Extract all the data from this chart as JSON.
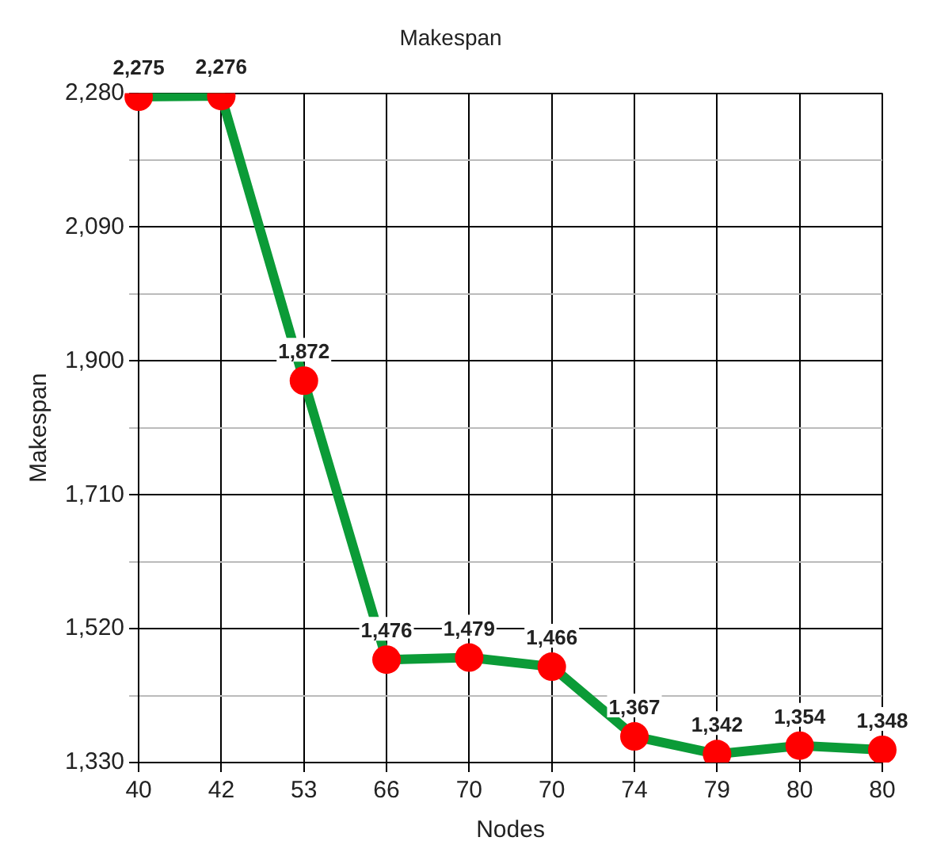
{
  "chart_data": {
    "type": "line",
    "title": "Makespan",
    "xlabel": "Nodes",
    "ylabel": "Makespan",
    "categories": [
      "40",
      "42",
      "53",
      "66",
      "70",
      "70",
      "74",
      "79",
      "80",
      "80"
    ],
    "series": [
      {
        "color": "#0b9b37",
        "values": [
          2275,
          2276,
          1872,
          1476,
          1479,
          1466,
          1367,
          1342,
          1354,
          1348
        ],
        "value_labels": [
          "2,275",
          "2,276",
          "1,872",
          "1,476",
          "1,479",
          "1,466",
          "1,367",
          "1,342",
          "1,354",
          "1,348"
        ]
      }
    ],
    "ylim": [
      1330,
      2280
    ],
    "yticks": [
      {
        "value": 1330,
        "label": "1,330"
      },
      {
        "value": 1425,
        "label": null
      },
      {
        "value": 1520,
        "label": "1,520"
      },
      {
        "value": 1615,
        "label": null
      },
      {
        "value": 1710,
        "label": "1,710"
      },
      {
        "value": 1805,
        "label": null
      },
      {
        "value": 1900,
        "label": "1,900"
      },
      {
        "value": 1995,
        "label": null
      },
      {
        "value": 2090,
        "label": "2,090"
      },
      {
        "value": 2185,
        "label": null
      },
      {
        "value": 2280,
        "label": "2,280"
      }
    ],
    "grid": true,
    "legend": false,
    "marker": "circle",
    "line_style": "solid"
  }
}
